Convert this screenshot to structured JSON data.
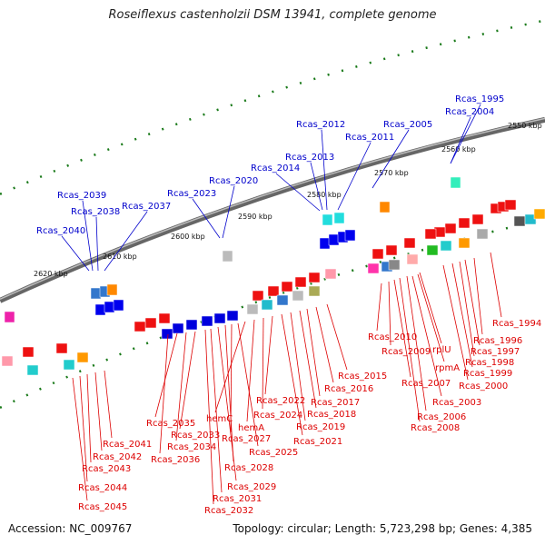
{
  "title": "Roseiflexus castenholzii DSM 13941, complete genome",
  "footer": {
    "accession": "Accession: NC_009767",
    "topology": "Topology: circular; Length: 5,723,298 bp; Genes: 4,385"
  },
  "colors": {
    "forward_label": "#0000cc",
    "reverse_label": "#dd0000",
    "ruler_tick": "#1a7a1a",
    "backbone": "#777777"
  },
  "ruler_ticks": [
    "2550 kbp",
    "2560 kbp",
    "2570 kbp",
    "2580 kbp",
    "2590 kbp",
    "2600 kbp",
    "2610 kbp",
    "2620 kbp"
  ],
  "forward_labels": [
    "Rcas_1995",
    "Rcas_2004",
    "Rcas_2005",
    "Rcas_2011",
    "Rcas_2012",
    "Rcas_2013",
    "Rcas_2014",
    "Rcas_2020",
    "Rcas_2023",
    "Rcas_2037",
    "Rcas_2038",
    "Rcas_2039",
    "Rcas_2040"
  ],
  "reverse_labels": [
    "Rcas_1994",
    "Rcas_1996",
    "Rcas_1997",
    "Rcas_1998",
    "Rcas_1999",
    "Rcas_2000",
    "rplU",
    "rpmA",
    "Rcas_2003",
    "Rcas_2006",
    "Rcas_2008",
    "Rcas_2007",
    "Rcas_2009",
    "Rcas_2010",
    "Rcas_2015",
    "Rcas_2016",
    "Rcas_2017",
    "Rcas_2018",
    "Rcas_2019",
    "Rcas_2021",
    "Rcas_2022",
    "Rcas_2024",
    "hemA",
    "hemC",
    "Rcas_2025",
    "Rcas_2027",
    "Rcas_2028",
    "Rcas_2029",
    "Rcas_2031",
    "Rcas_2032",
    "Rcas_2033",
    "Rcas_2034",
    "Rcas_2035",
    "Rcas_2036",
    "Rcas_2041",
    "Rcas_2042",
    "Rcas_2043",
    "Rcas_2044",
    "Rcas_2045"
  ]
}
